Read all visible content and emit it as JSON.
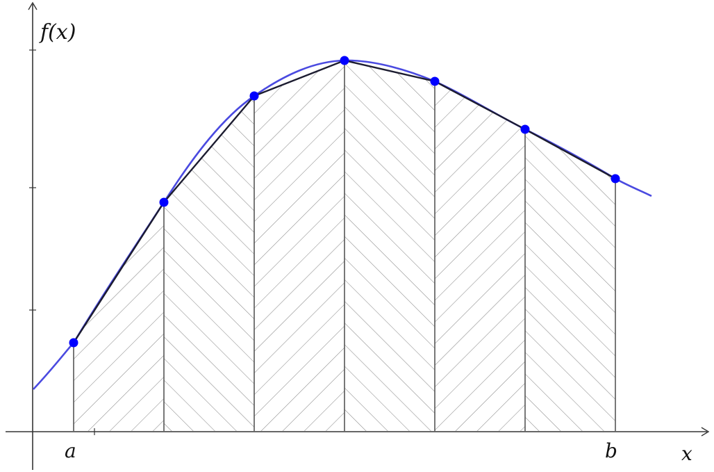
{
  "labels": {
    "y_axis": "f(x)",
    "x_axis": "x",
    "a": "a",
    "b": "b"
  },
  "colors": {
    "curve": "#4a4ae0",
    "points": "#0000ff",
    "chords": "#222222",
    "hatch": "#888888",
    "axes": "#333333"
  }
}
